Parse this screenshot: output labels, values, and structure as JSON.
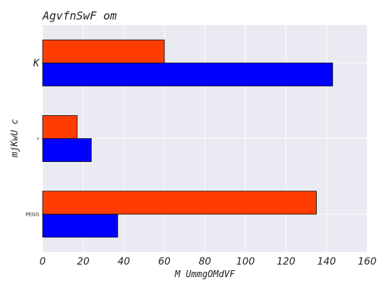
{
  "chart_data": {
    "type": "bar",
    "orientation": "horizontal",
    "title": "AgvfnSwF  om",
    "xlabel": "M UmmgOMdVF",
    "ylabel": "mjKwU c",
    "categories": [
      "PEGG",
      "v",
      "K"
    ],
    "series": [
      {
        "color": "#0000ff",
        "values": [
          37,
          24,
          143
        ]
      },
      {
        "color": "#ff3d00",
        "values": [
          135,
          17,
          60
        ]
      }
    ],
    "xlim": [
      0,
      160
    ],
    "xticks": [
      0,
      20,
      40,
      60,
      80,
      100,
      120,
      140,
      160
    ],
    "grid": true,
    "background_color": "#e9eaf2",
    "edge_color": "#000000"
  }
}
